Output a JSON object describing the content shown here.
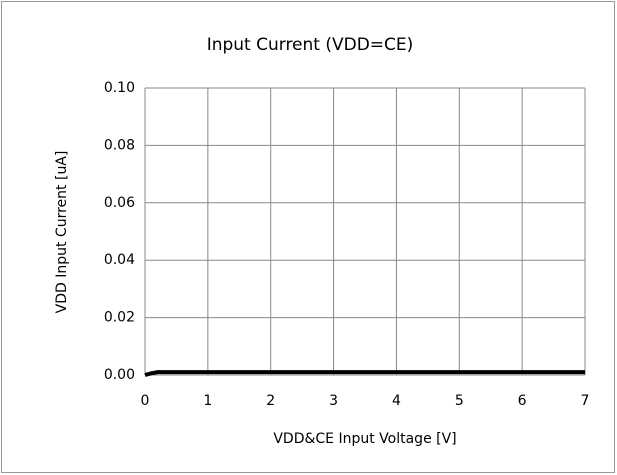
{
  "chart_data": {
    "type": "line",
    "title": "Input Current (VDD=CE)",
    "x_label": "VDD&CE Input Voltage [V]",
    "y_label": "VDD Input Current [uA]",
    "x": [
      0,
      0.1,
      0.2,
      0.5,
      1,
      2,
      3,
      4,
      5,
      6,
      7
    ],
    "series": [
      {
        "name": "VDD Input Current",
        "color": "#000000",
        "values": [
          0,
          0.0006,
          0.001,
          0.001,
          0.001,
          0.001,
          0.001,
          0.001,
          0.001,
          0.001,
          0.001
        ]
      }
    ],
    "xlim": [
      0,
      7
    ],
    "xticks": [
      0,
      1,
      2,
      3,
      4,
      5,
      6,
      7
    ],
    "ylim": [
      0,
      0.1
    ],
    "yticks": [
      {
        "value": 0,
        "label": "0.00"
      },
      0.02,
      0.04,
      0.06,
      0.08,
      {
        "value": 0.1,
        "label": "0.10"
      }
    ],
    "grid": true
  }
}
